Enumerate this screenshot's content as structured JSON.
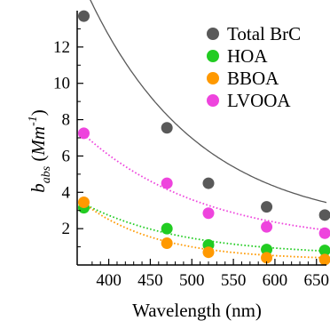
{
  "chart_data": {
    "type": "scatter",
    "title": "",
    "xlabel": "Wavelength (nm)",
    "ylabel": {
      "main": "b",
      "sub": "abs",
      "open": " (",
      "unit_main": "Mm",
      "unit_sup": "-1",
      "close": ")"
    },
    "xlim": [
      362,
      662
    ],
    "ylim": [
      0,
      14
    ],
    "xticks": [
      "400",
      "450",
      "500",
      "550",
      "600",
      "650"
    ],
    "yticks": [
      "2",
      "4",
      "6",
      "8",
      "10",
      "12"
    ],
    "legend_position": "top-right",
    "series": [
      {
        "name": "Total BrC",
        "color": "#595959",
        "fit_style": "solid",
        "x": [
          370,
          470,
          520,
          590,
          660
        ],
        "y": [
          13.7,
          7.55,
          4.5,
          3.2,
          2.75
        ],
        "fit": {
          "a": 13.4,
          "b": 0.00755,
          "c": 1.96
        }
      },
      {
        "name": "HOA",
        "color": "#22cc22",
        "fit_style": "dotted",
        "x": [
          370,
          470,
          520,
          590,
          660
        ],
        "y": [
          3.15,
          2.0,
          1.1,
          0.85,
          0.8
        ],
        "fit": {
          "a": 2.85,
          "b": 0.0084,
          "c": 0.52
        }
      },
      {
        "name": "BBOA",
        "color": "#ff9900",
        "fit_style": "dotted",
        "x": [
          370,
          470,
          520,
          590,
          660
        ],
        "y": [
          3.45,
          1.2,
          0.7,
          0.4,
          0.3
        ],
        "fit": {
          "a": 3.12,
          "b": 0.0113,
          "c": 0.28
        }
      },
      {
        "name": "LVOOA",
        "color": "#ee44dd",
        "fit_style": "dotted",
        "x": [
          370,
          470,
          520,
          590,
          660
        ],
        "y": [
          7.25,
          4.5,
          2.85,
          2.1,
          1.75
        ],
        "fit": {
          "a": 6.1,
          "b": 0.0068,
          "c": 1.08
        }
      }
    ]
  }
}
